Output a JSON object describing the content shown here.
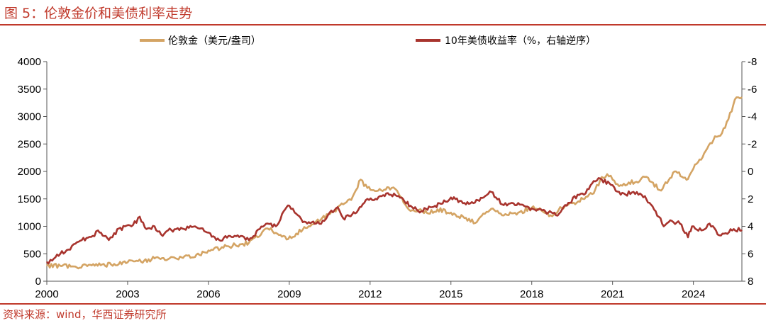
{
  "header": {
    "title": "图 5：伦敦金价和美债利率走势"
  },
  "footer": {
    "source": "资料来源：wind，华西证券研究所"
  },
  "colors": {
    "gold": "#D4A464",
    "yield": "#A8342E",
    "accent": "#C0392B",
    "axis": "#555555"
  },
  "chart_data": {
    "type": "line",
    "title": "",
    "legend": {
      "placement": "top",
      "entries": [
        "伦敦金（美元/盎司）",
        "10年美债收益率（%，右轴逆序）"
      ]
    },
    "x_ticks": [
      "2000",
      "2003",
      "2006",
      "2009",
      "2012",
      "2015",
      "2018",
      "2021",
      "2024"
    ],
    "xlim": [
      2000,
      2025.8
    ],
    "y_left": {
      "ticks": [
        "0",
        "500",
        "1000",
        "1500",
        "2000",
        "2500",
        "3000",
        "3500",
        "4000"
      ],
      "lim": [
        0,
        4000
      ]
    },
    "y_right": {
      "ticks": [
        "-8",
        "-6",
        "-4",
        "-2",
        "0",
        "2",
        "4",
        "6",
        "8"
      ],
      "lim": [
        -8,
        8
      ],
      "reversed": true
    },
    "grid": false,
    "series": [
      {
        "name": "伦敦金（美元/盎司）",
        "axis": "left",
        "x": [
          2000.0,
          2000.5,
          2001.0,
          2001.5,
          2002.0,
          2002.5,
          2003.0,
          2003.5,
          2004.0,
          2004.5,
          2005.0,
          2005.5,
          2006.0,
          2006.5,
          2007.0,
          2007.5,
          2008.0,
          2008.2,
          2008.5,
          2008.9,
          2009.5,
          2010.0,
          2010.5,
          2011.0,
          2011.3,
          2011.65,
          2011.9,
          2012.3,
          2012.8,
          2013.0,
          2013.3,
          2013.5,
          2013.8,
          2014.0,
          2014.5,
          2015.0,
          2015.5,
          2015.9,
          2016.5,
          2016.9,
          2017.5,
          2018.0,
          2018.3,
          2018.7,
          2019.0,
          2019.5,
          2019.9,
          2020.3,
          2020.6,
          2020.8,
          2021.0,
          2021.3,
          2021.6,
          2022.0,
          2022.2,
          2022.8,
          2023.3,
          2023.8,
          2024.0,
          2024.4,
          2024.8,
          2025.0,
          2025.3,
          2025.6,
          2025.8
        ],
        "values": [
          285,
          280,
          268,
          275,
          290,
          315,
          345,
          355,
          415,
          400,
          435,
          440,
          560,
          620,
          660,
          700,
          900,
          960,
          880,
          760,
          940,
          1090,
          1220,
          1400,
          1480,
          1850,
          1700,
          1650,
          1700,
          1650,
          1400,
          1280,
          1300,
          1240,
          1310,
          1250,
          1150,
          1060,
          1320,
          1200,
          1250,
          1340,
          1330,
          1200,
          1300,
          1420,
          1500,
          1600,
          1900,
          1950,
          1850,
          1750,
          1800,
          1820,
          1900,
          1650,
          2000,
          1860,
          2050,
          2330,
          2640,
          2650,
          2950,
          3350,
          3350
        ]
      },
      {
        "name": "10年美债收益率（%，右轴逆序）",
        "axis": "right",
        "x": [
          2000.0,
          2000.2,
          2000.5,
          2000.8,
          2001.0,
          2001.3,
          2001.7,
          2001.9,
          2002.3,
          2002.5,
          2002.9,
          2003.2,
          2003.45,
          2003.7,
          2004.0,
          2004.3,
          2004.5,
          2004.8,
          2005.1,
          2005.5,
          2005.9,
          2006.4,
          2006.8,
          2007.2,
          2007.5,
          2007.9,
          2008.2,
          2008.5,
          2008.9,
          2009.0,
          2009.2,
          2009.5,
          2010.0,
          2010.3,
          2010.5,
          2010.8,
          2011.0,
          2011.5,
          2011.9,
          2012.2,
          2012.6,
          2013.0,
          2013.5,
          2013.9,
          2014.3,
          2014.8,
          2015.0,
          2015.5,
          2016.0,
          2016.5,
          2016.9,
          2017.5,
          2018.0,
          2018.5,
          2018.9,
          2019.3,
          2019.7,
          2020.0,
          2020.3,
          2020.6,
          2021.0,
          2021.3,
          2021.9,
          2022.2,
          2022.6,
          2022.9,
          2023.2,
          2023.5,
          2023.8,
          2023.95,
          2024.3,
          2024.6,
          2024.9,
          2025.2,
          2025.5,
          2025.8
        ],
        "values": [
          6.6,
          6.5,
          6.0,
          5.7,
          5.3,
          5.0,
          4.7,
          4.3,
          5.0,
          4.5,
          4.0,
          3.9,
          3.3,
          4.2,
          4.0,
          4.7,
          4.3,
          4.2,
          4.2,
          4.0,
          4.4,
          5.0,
          4.7,
          4.7,
          5.0,
          4.2,
          3.8,
          4.0,
          2.6,
          2.5,
          3.0,
          3.7,
          3.8,
          3.6,
          3.0,
          2.6,
          3.4,
          3.0,
          2.0,
          2.0,
          1.6,
          1.8,
          2.5,
          2.9,
          2.6,
          2.2,
          1.9,
          2.3,
          2.1,
          1.5,
          2.4,
          2.3,
          2.7,
          2.9,
          3.2,
          2.5,
          1.7,
          1.6,
          0.7,
          0.6,
          1.0,
          1.7,
          1.5,
          1.8,
          2.9,
          4.0,
          3.6,
          3.8,
          4.8,
          4.0,
          4.3,
          3.8,
          4.6,
          4.5,
          4.2,
          4.3
        ]
      }
    ]
  }
}
